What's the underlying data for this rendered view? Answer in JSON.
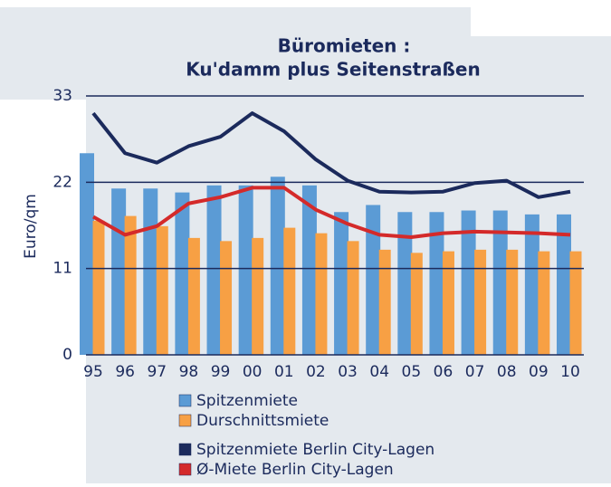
{
  "chart_data": {
    "type": "bar_line",
    "title": [
      "Büromieten :",
      "Ku'damm plus Seitenstraßen"
    ],
    "y_label": "Euro/qm",
    "categories": [
      "95",
      "96",
      "97",
      "98",
      "99",
      "00",
      "01",
      "02",
      "03",
      "04",
      "05",
      "06",
      "07",
      "08",
      "09",
      "10"
    ],
    "ylim": [
      0,
      33
    ],
    "yticks": [
      0,
      11,
      22,
      33
    ],
    "grid": true,
    "series": [
      {
        "name": "Spitzenmiete",
        "kind": "bar",
        "color": "#5b9bd5",
        "values": [
          25.7,
          21.2,
          21.2,
          20.7,
          21.6,
          21.6,
          22.7,
          21.6,
          18.2,
          19.1,
          18.2,
          18.2,
          18.4,
          18.4,
          17.9,
          17.9
        ]
      },
      {
        "name": "Durschnittsmiete",
        "kind": "bar",
        "color": "#f7a044",
        "values": [
          17.1,
          17.7,
          16.4,
          14.9,
          14.5,
          14.9,
          16.2,
          15.5,
          14.5,
          13.4,
          13.0,
          13.2,
          13.4,
          13.4,
          13.2,
          13.2
        ]
      },
      {
        "name": "Spitzenmiete Berlin City-Lagen",
        "kind": "line",
        "color": "#1b2a5c",
        "values": [
          30.8,
          25.7,
          24.5,
          26.6,
          27.8,
          30.8,
          28.5,
          24.9,
          22.2,
          20.8,
          20.7,
          20.8,
          21.9,
          22.2,
          20.1,
          20.8
        ]
      },
      {
        "name": "Ø-Miete Berlin City-Lagen",
        "kind": "line",
        "color": "#d42a2a",
        "values": [
          17.6,
          15.3,
          16.4,
          19.3,
          20.1,
          21.3,
          21.3,
          18.5,
          16.7,
          15.3,
          15.0,
          15.5,
          15.7,
          15.6,
          15.5,
          15.3
        ]
      }
    ]
  }
}
